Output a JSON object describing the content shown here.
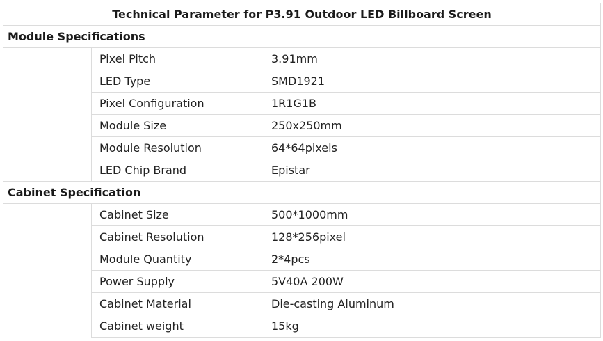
{
  "title": "Technical Parameter for P3.91 Outdoor LED Billboard Screen",
  "sections": [
    {
      "heading": "Module Specifications",
      "rows": [
        {
          "label": "Pixel Pitch",
          "value": "3.91mm"
        },
        {
          "label": "LED Type",
          "value": "SMD1921"
        },
        {
          "label": "Pixel Configuration",
          "value": "1R1G1B"
        },
        {
          "label": "Module Size",
          "value": "250x250mm"
        },
        {
          "label": "Module Resolution",
          "value": "64*64pixels"
        },
        {
          "label": "LED Chip Brand",
          "value": "Epistar"
        }
      ]
    },
    {
      "heading": "Cabinet Specification",
      "rows": [
        {
          "label": "Cabinet Size",
          "value": "500*1000mm"
        },
        {
          "label": "Cabinet Resolution",
          "value": "128*256pixel"
        },
        {
          "label": "Module Quantity",
          "value": "2*4pcs"
        },
        {
          "label": "Power Supply",
          "value": "5V40A 200W"
        },
        {
          "label": "Cabinet Material",
          "value": "Die-casting Aluminum"
        },
        {
          "label": "Cabinet weight",
          "value": "15kg"
        }
      ]
    }
  ]
}
